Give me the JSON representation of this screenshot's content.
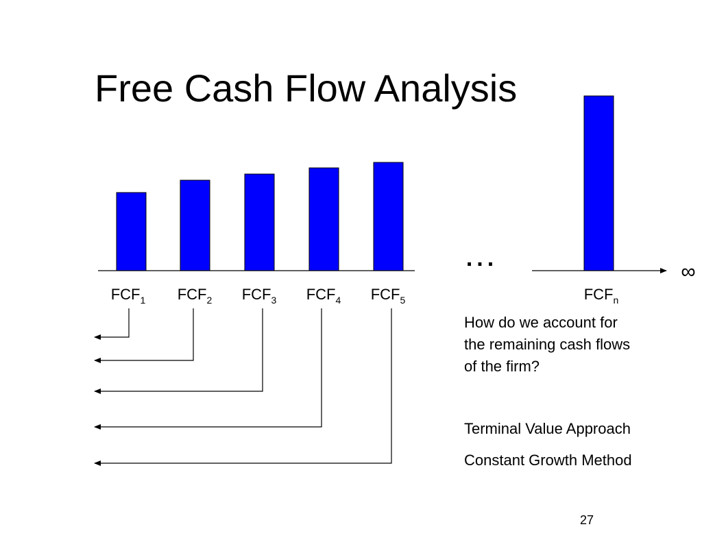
{
  "title": "Free Cash Flow Analysis",
  "labels": [
    {
      "base": "FCF",
      "sub": "1"
    },
    {
      "base": "FCF",
      "sub": "2"
    },
    {
      "base": "FCF",
      "sub": "3"
    },
    {
      "base": "FCF",
      "sub": "4"
    },
    {
      "base": "FCF",
      "sub": "5"
    }
  ],
  "label_n": {
    "base": "FCF",
    "sub": "n"
  },
  "ellipsis": "...",
  "infinity": "∞",
  "question_lines": [
    "How do we account for",
    "the remaining cash flows",
    "of the firm?"
  ],
  "approaches": [
    "Terminal Value Approach",
    "Constant Growth Method"
  ],
  "page_number": "27"
}
